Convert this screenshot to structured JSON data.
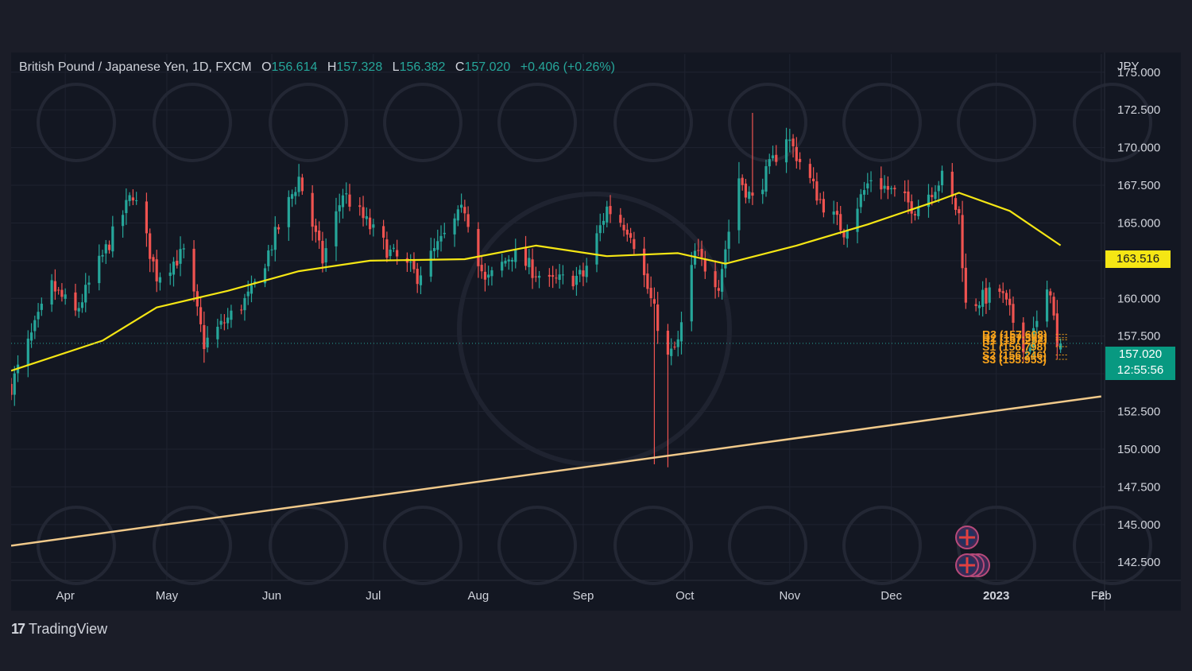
{
  "legend": {
    "symbol": "British Pound / Japanese Yen, 1D, FXCM",
    "open_label": "O",
    "open": "156.614",
    "high_label": "H",
    "high": "157.328",
    "low_label": "L",
    "low": "156.382",
    "close_label": "C",
    "close": "157.020",
    "change": "+0.406 (+0.26%)"
  },
  "axis": {
    "currency": "JPY",
    "y_ticks": [
      "175.000",
      "172.500",
      "170.000",
      "167.500",
      "165.000",
      "162.500",
      "160.000",
      "157.500",
      "155.000",
      "152.500",
      "150.000",
      "147.500",
      "145.000",
      "142.500"
    ],
    "x_ticks": [
      "Apr",
      "May",
      "Jun",
      "Jul",
      "Aug",
      "Sep",
      "Oct",
      "Nov",
      "Dec",
      "2023",
      "Feb",
      "2"
    ]
  },
  "tags": {
    "ma_value": "163.516",
    "last_price": "157.020",
    "countdown": "12:55:56"
  },
  "pivot_labels": [
    "R3 (157.608)",
    "R2 (157.392)",
    "R1 (157.252)",
    "S1 (156.798)",
    "S2 (156.246)",
    "S3 (155.953)"
  ],
  "footer": {
    "brand": "TradingView",
    "logo_glyph": "17"
  },
  "colors": {
    "up": "#26a69a",
    "down": "#ef5350",
    "ma": "#f5e614",
    "trendline": "#f0c98a",
    "pivot": "#f7a21b",
    "background": "#131722"
  },
  "chart_data": {
    "type": "candlestick",
    "title": "British Pound / Japanese Yen, 1D, FXCM",
    "ylabel": "JPY",
    "ylim": [
      141.3,
      176.2
    ],
    "x_range": [
      "2022-03-16",
      "2023-02-02"
    ],
    "grid": true,
    "last": {
      "open": 156.614,
      "high": 157.328,
      "low": 156.382,
      "close": 157.02,
      "change": 0.406,
      "change_pct": 0.26
    },
    "anchors": [
      {
        "date": "2022-03-16",
        "price": 154.2
      },
      {
        "date": "2022-03-28",
        "price": 160.8
      },
      {
        "date": "2022-04-04",
        "price": 159.0
      },
      {
        "date": "2022-04-21",
        "price": 167.0
      },
      {
        "date": "2022-04-28",
        "price": 161.5
      },
      {
        "date": "2022-05-06",
        "price": 163.0
      },
      {
        "date": "2022-05-12",
        "price": 157.0
      },
      {
        "date": "2022-05-26",
        "price": 160.3
      },
      {
        "date": "2022-06-09",
        "price": 168.0
      },
      {
        "date": "2022-06-16",
        "price": 162.5
      },
      {
        "date": "2022-06-22",
        "price": 167.0
      },
      {
        "date": "2022-07-06",
        "price": 163.0
      },
      {
        "date": "2022-07-14",
        "price": 161.5
      },
      {
        "date": "2022-07-28",
        "price": 166.0
      },
      {
        "date": "2022-08-03",
        "price": 161.0
      },
      {
        "date": "2022-08-11",
        "price": 163.0
      },
      {
        "date": "2022-08-22",
        "price": 161.0
      },
      {
        "date": "2022-09-01",
        "price": 161.5
      },
      {
        "date": "2022-09-08",
        "price": 166.0
      },
      {
        "date": "2022-09-15",
        "price": 164.5
      },
      {
        "date": "2022-09-26",
        "price": 156.0
      },
      {
        "date": "2022-09-29",
        "price": 157.0
      },
      {
        "date": "2022-10-04",
        "price": 163.0
      },
      {
        "date": "2022-10-11",
        "price": 161.0
      },
      {
        "date": "2022-10-17",
        "price": 168.0
      },
      {
        "date": "2022-10-21",
        "price": 166.5
      },
      {
        "date": "2022-10-31",
        "price": 170.8
      },
      {
        "date": "2022-11-10",
        "price": 166.5
      },
      {
        "date": "2022-11-17",
        "price": 164.5
      },
      {
        "date": "2022-11-25",
        "price": 168.0
      },
      {
        "date": "2022-12-08",
        "price": 166.0
      },
      {
        "date": "2022-12-16",
        "price": 168.0
      },
      {
        "date": "2022-12-21",
        "price": 165.5
      },
      {
        "date": "2022-12-23",
        "price": 159.5
      },
      {
        "date": "2023-01-02",
        "price": 160.5
      },
      {
        "date": "2023-01-10",
        "price": 156.5
      },
      {
        "date": "2023-01-17",
        "price": 160.7
      },
      {
        "date": "2023-01-19",
        "price": 156.6
      },
      {
        "date": "2023-01-20",
        "price": 157.02
      }
    ],
    "spikes": [
      {
        "date": "2022-09-22",
        "low": 149.0
      },
      {
        "date": "2022-09-26",
        "low": 148.8
      },
      {
        "date": "2022-10-21",
        "high": 172.3
      }
    ],
    "moving_average": [
      {
        "date": "2022-03-16",
        "price": 155.2
      },
      {
        "date": "2022-04-12",
        "price": 157.2
      },
      {
        "date": "2022-04-28",
        "price": 159.4
      },
      {
        "date": "2022-05-19",
        "price": 160.5
      },
      {
        "date": "2022-06-09",
        "price": 161.8
      },
      {
        "date": "2022-06-30",
        "price": 162.5
      },
      {
        "date": "2022-07-28",
        "price": 162.6
      },
      {
        "date": "2022-08-18",
        "price": 163.5
      },
      {
        "date": "2022-09-08",
        "price": 162.8
      },
      {
        "date": "2022-09-29",
        "price": 163.0
      },
      {
        "date": "2022-10-13",
        "price": 162.3
      },
      {
        "date": "2022-11-03",
        "price": 163.5
      },
      {
        "date": "2022-11-24",
        "price": 164.9
      },
      {
        "date": "2022-12-15",
        "price": 166.5
      },
      {
        "date": "2022-12-21",
        "price": 167.0
      },
      {
        "date": "2023-01-05",
        "price": 165.8
      },
      {
        "date": "2023-01-20",
        "price": 163.516
      }
    ],
    "trendline": [
      {
        "date": "2022-03-16",
        "price": 143.6
      },
      {
        "date": "2023-02-01",
        "price": 153.5
      }
    ]
  }
}
